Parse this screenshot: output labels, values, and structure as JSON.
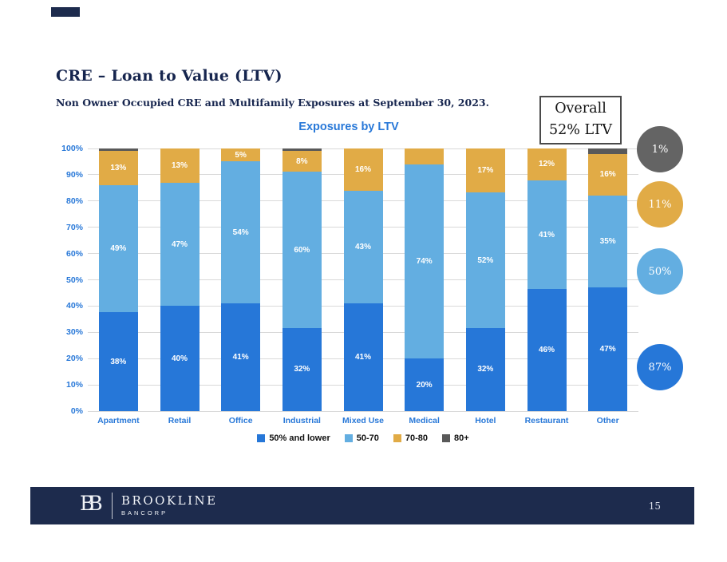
{
  "header": {
    "title": "CRE – Loan to Value (LTV)",
    "subtitle": "Non Owner Occupied CRE and Multifamily Exposures at September 30, 2023."
  },
  "overall_badge": {
    "line1": "Overall",
    "line2": "52% LTV"
  },
  "chart_data": {
    "type": "bar",
    "subtype": "stacked-100",
    "title": "Exposures by LTV",
    "categories": [
      "Apartment",
      "Retail",
      "Office",
      "Industrial",
      "Mixed Use",
      "Medical",
      "Hotel",
      "Restaurant",
      "Other"
    ],
    "y_ticks": [
      "0%",
      "10%",
      "20%",
      "30%",
      "40%",
      "50%",
      "60%",
      "70%",
      "80%",
      "90%",
      "100%"
    ],
    "ylim": [
      0,
      100
    ],
    "grid": true,
    "legend_position": "bottom",
    "series": [
      {
        "name": "50% and lower",
        "color": "#2677d8",
        "values": [
          38,
          40,
          41,
          32,
          41,
          20,
          32,
          46,
          47
        ],
        "labels": [
          "38%",
          "40%",
          "41%",
          "32%",
          "41%",
          "20%",
          "32%",
          "46%",
          "47%"
        ]
      },
      {
        "name": "50-70",
        "color": "#63aee1",
        "values": [
          49,
          47,
          54,
          60,
          43,
          74,
          52,
          41,
          35
        ],
        "labels": [
          "49%",
          "47%",
          "54%",
          "60%",
          "43%",
          "74%",
          "52%",
          "41%",
          "35%"
        ]
      },
      {
        "name": "70-80",
        "color": "#e1ab46",
        "values": [
          13,
          13,
          5,
          8,
          16,
          6,
          17,
          12,
          16
        ],
        "labels": [
          "13%",
          "13%",
          "5%",
          "8%",
          "16%",
          null,
          "17%",
          "12%",
          "16%"
        ]
      },
      {
        "name": "80+",
        "color": "#595959",
        "values": [
          1,
          0,
          0,
          1,
          0,
          0,
          0,
          0,
          2
        ],
        "labels": [
          null,
          null,
          null,
          null,
          null,
          null,
          null,
          null,
          null
        ]
      }
    ]
  },
  "overall_circles": [
    {
      "value": "1%",
      "color": "#646464"
    },
    {
      "value": "11%",
      "color": "#e1ab46"
    },
    {
      "value": "50%",
      "color": "#63aee1"
    },
    {
      "value": "87%",
      "color": "#2677d8"
    }
  ],
  "footer": {
    "monogram": "BB",
    "brand": "BROOKLINE",
    "brand_sub": "BANCORP",
    "page_number": "15"
  },
  "colors": {
    "accent_blue": "#2878d8",
    "navy": "#1d2b4d"
  }
}
